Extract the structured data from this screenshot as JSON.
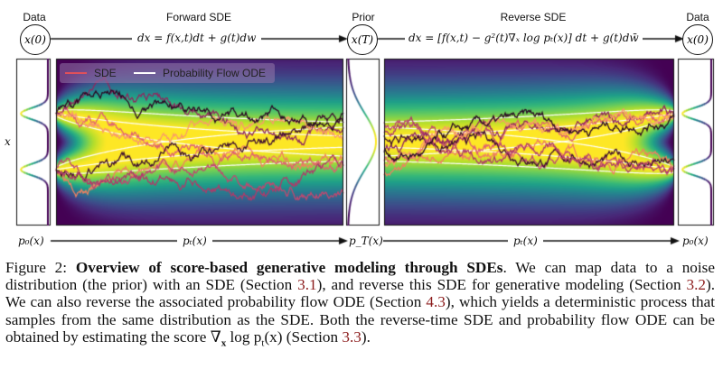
{
  "figure": {
    "top_labels": {
      "data_left": "Data",
      "forward": "Forward SDE",
      "prior": "Prior",
      "reverse": "Reverse SDE",
      "data_right": "Data"
    },
    "nodes": {
      "x0_left": "x(0)",
      "xT": "x(T)",
      "x0_right": "x(0)"
    },
    "equations": {
      "forward": "dx = f(x,t)dt + g(t)dw",
      "reverse": "dx = [f(x,t) − g²(t)∇ₓ log pₜ(x)] dt + g(t)dw̄"
    },
    "y_axis_label": "x",
    "bottom_labels": {
      "p0_left": "p₀(x)",
      "pt_forward": "pₜ(x)",
      "pT": "p_T(x)",
      "pt_reverse": "pₜ(x)",
      "p0_right": "p₀(x)"
    },
    "legend": {
      "sde": "SDE",
      "ode": "Probability Flow ODE",
      "sde_color": "#e0505a",
      "ode_color": "#ffffff"
    },
    "colormap": "viridis"
  },
  "caption": {
    "prefix": "Figure 2: ",
    "title": "Overview of score-based generative modeling through SDEs",
    "t1": ". We can map data to a noise distribution (the prior) with an SDE (Section ",
    "r1": "3.1",
    "t2": "), and reverse this SDE for generative modeling (Section ",
    "r2": "3.2",
    "t3": "). We can also reverse the associated probability flow ODE (Section ",
    "r3": "4.3",
    "t4": "), which yields a deterministic process that samples from the same distribution as the SDE. Both the reverse-time SDE and probability flow ODE can be obtained by estimating the score ∇",
    "score_sub": "x",
    "t5": " log p",
    "score_sub2": "t",
    "t6": "(x) (Section ",
    "r4": "3.3",
    "t7": ")."
  }
}
